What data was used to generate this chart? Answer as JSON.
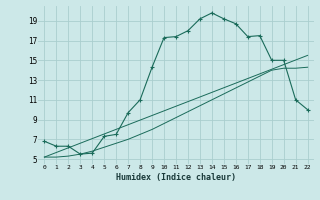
{
  "xlabel": "Humidex (Indice chaleur)",
  "bg_color": "#cce8e8",
  "grid_color": "#aacece",
  "line_color": "#1a6b5a",
  "xlim": [
    -0.5,
    22.5
  ],
  "ylim": [
    4.5,
    20.5
  ],
  "yticks": [
    5,
    7,
    9,
    11,
    13,
    15,
    17,
    19
  ],
  "xticks": [
    0,
    1,
    2,
    3,
    4,
    5,
    6,
    7,
    8,
    9,
    10,
    11,
    12,
    13,
    14,
    15,
    16,
    17,
    18,
    19,
    20,
    21,
    22
  ],
  "line1_x": [
    0,
    1,
    2,
    3,
    4,
    5,
    6,
    7,
    8,
    9,
    10,
    11,
    12,
    13,
    14,
    15,
    16,
    17,
    18,
    19,
    20,
    21,
    22
  ],
  "line1_y": [
    6.8,
    6.3,
    6.3,
    5.5,
    5.6,
    7.3,
    7.5,
    9.7,
    11.0,
    14.3,
    17.3,
    17.4,
    18.0,
    19.2,
    19.8,
    19.2,
    18.7,
    17.4,
    17.5,
    15.0,
    15.0,
    11.0,
    10.0
  ],
  "line2_x": [
    0,
    1,
    2,
    3,
    4,
    5,
    6,
    7,
    8,
    9,
    10,
    11,
    12,
    13,
    14,
    15,
    16,
    17,
    18,
    19,
    20,
    21,
    22
  ],
  "line2_y": [
    5.2,
    5.2,
    5.3,
    5.5,
    5.8,
    6.2,
    6.6,
    7.0,
    7.5,
    8.0,
    8.6,
    9.2,
    9.8,
    10.4,
    11.0,
    11.6,
    12.2,
    12.8,
    13.4,
    14.0,
    14.2,
    14.2,
    14.3
  ],
  "line3_x": [
    0,
    22
  ],
  "line3_y": [
    5.2,
    15.5
  ]
}
